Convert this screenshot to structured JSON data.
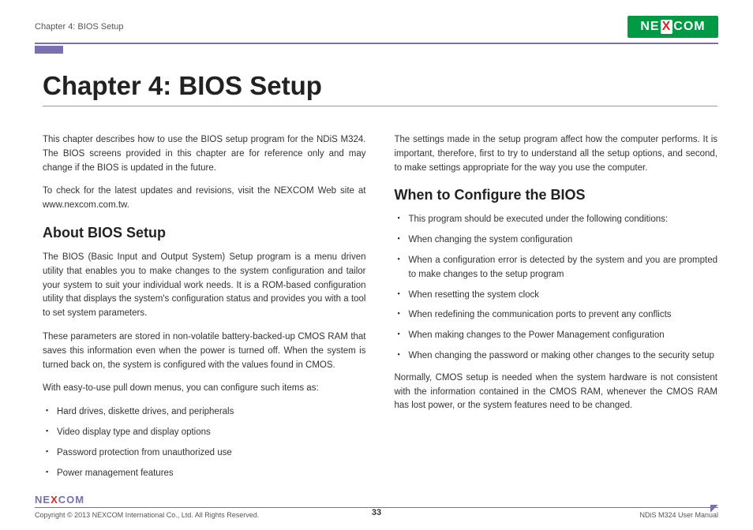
{
  "header": {
    "breadcrumb": "Chapter 4: BIOS Setup",
    "logo_text_left": "NE",
    "logo_text_x": "X",
    "logo_text_right": "COM"
  },
  "title": "Chapter 4: BIOS Setup",
  "left_column": {
    "intro_p1": "This chapter describes how to use the BIOS setup program for the NDiS M324. The BIOS screens provided in this chapter are for reference only and may change if the BIOS is updated in the future.",
    "intro_p2": "To check for the latest updates and revisions, visit the NEXCOM Web site at www.nexcom.com.tw.",
    "h2": "About BIOS Setup",
    "about_p1": "The BIOS (Basic Input and Output System) Setup program is a menu driven utility that enables you to make changes to the system configuration and tailor your system to suit your individual work needs. It is a ROM-based configuration utility that displays the system's configuration status and provides you with a tool to set system parameters.",
    "about_p2": "These parameters are stored in non-volatile battery-backed-up CMOS RAM that saves this information even when the power is turned off. When the system is turned back on, the system is configured with the values found in CMOS.",
    "about_p3": "With easy-to-use pull down menus, you can configure such items as:",
    "items": [
      "Hard drives, diskette drives, and peripherals",
      "Video display type and display options",
      "Password protection from unauthorized use",
      "Power management features"
    ]
  },
  "right_column": {
    "top_p": "The settings made in the setup program affect how the computer performs. It is important, therefore, first to try to understand all the setup options, and second, to make settings appropriate for the way you use the computer.",
    "h2": "When to Configure the BIOS",
    "items": [
      "This program should be executed under the following conditions:",
      "When changing the system configuration",
      "When a configuration error is detected by the system and you are prompted to make changes to the setup program",
      "When resetting the system clock",
      "When redefining the communication ports to prevent any conflicts",
      "When making changes to the Power Management configuration",
      "When changing the password or making other changes to the security setup"
    ],
    "bottom_p": "Normally, CMOS setup is needed when the system hardware is not consistent with the information contained in the CMOS RAM, whenever the CMOS RAM has lost power, or the system features need to be changed."
  },
  "footer": {
    "logo_left": "NE",
    "logo_x": "X",
    "logo_right": "COM",
    "copyright": "Copyright © 2013 NEXCOM International Co., Ltd. All Rights Reserved.",
    "page": "33",
    "manual": "NDiS M324 User Manual"
  }
}
